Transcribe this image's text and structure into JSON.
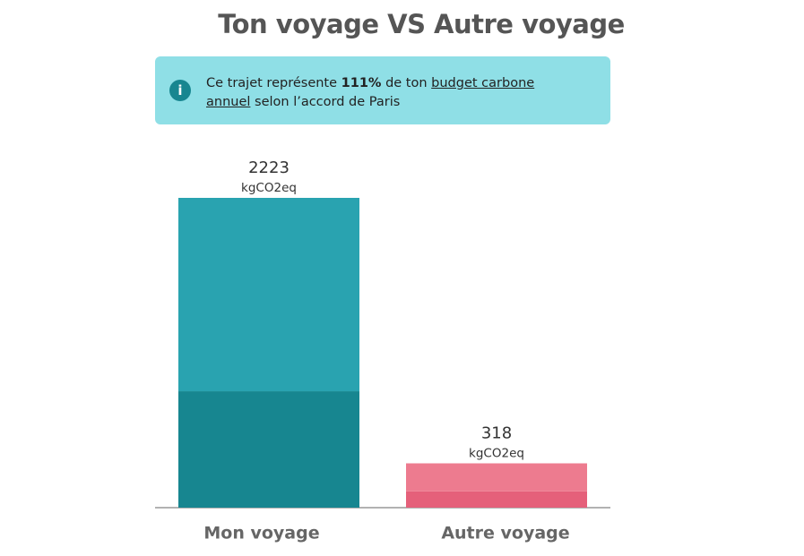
{
  "title": "Ton voyage VS Autre voyage",
  "banner": {
    "before": "Ce trajet représente",
    "percent": "111%",
    "middle": "de ton",
    "link": "budget carbone annuel",
    "after": "selon l’accord de Paris"
  },
  "chart_data": {
    "type": "bar",
    "stacked": true,
    "categories": [
      "Mon voyage",
      "Autre voyage"
    ],
    "series": [
      {
        "colors": [
          "#178690",
          "#e5607a"
        ],
        "values": [
          835,
          117
        ]
      },
      {
        "colors": [
          "#29a3b0",
          "#ed7b8f"
        ],
        "values": [
          1388,
          201
        ]
      }
    ],
    "totals": [
      2223,
      318
    ],
    "unit": "kgCO2eq"
  }
}
